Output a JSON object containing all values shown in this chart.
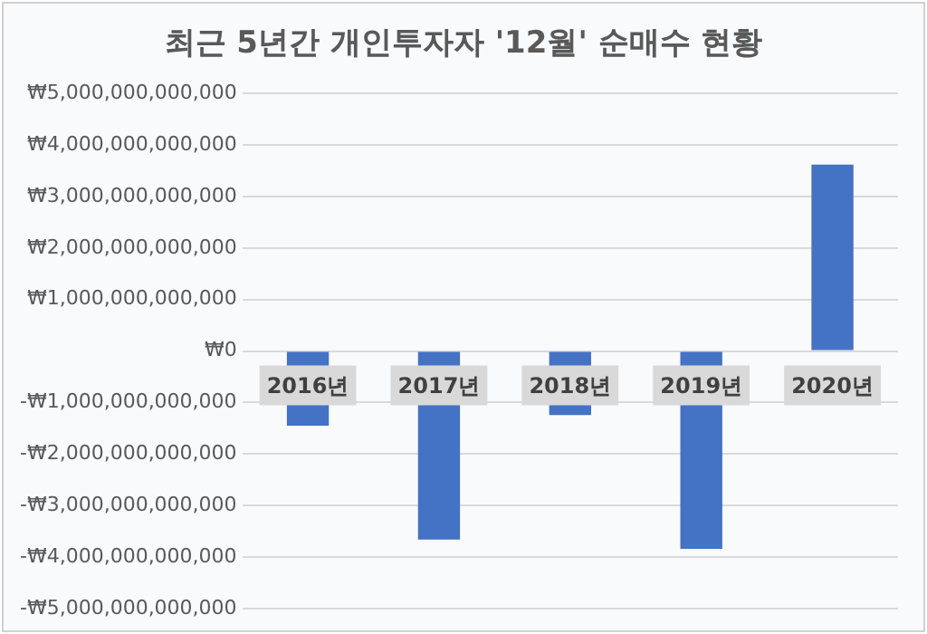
{
  "chart_data": {
    "type": "bar",
    "title": "최근 5년간 개인투자자 '12월' 순매수 현황",
    "categories": [
      "2016년",
      "2017년",
      "2018년",
      "2019년",
      "2020년"
    ],
    "values": [
      -1450000000000,
      -3660000000000,
      -1240000000000,
      -3840000000000,
      3620000000000
    ],
    "color": "#4472c4",
    "ylim": [
      -5000000000000,
      5000000000000
    ],
    "yticks": [
      {
        "value": -5000000000000,
        "label": "-₩5,000,000,000,000"
      },
      {
        "value": -4000000000000,
        "label": "-₩4,000,000,000,000"
      },
      {
        "value": -3000000000000,
        "label": "-₩3,000,000,000,000"
      },
      {
        "value": -2000000000000,
        "label": "-₩2,000,000,000,000"
      },
      {
        "value": -1000000000000,
        "label": "-₩1,000,000,000,000"
      },
      {
        "value": 0,
        "label": "₩0"
      },
      {
        "value": 1000000000000,
        "label": "₩1,000,000,000,000"
      },
      {
        "value": 2000000000000,
        "label": "₩2,000,000,000,000"
      },
      {
        "value": 3000000000000,
        "label": "₩3,000,000,000,000"
      },
      {
        "value": 4000000000000,
        "label": "₩4,000,000,000,000"
      },
      {
        "value": 5000000000000,
        "label": "₩5,000,000,000,000"
      }
    ],
    "grid": "y"
  }
}
